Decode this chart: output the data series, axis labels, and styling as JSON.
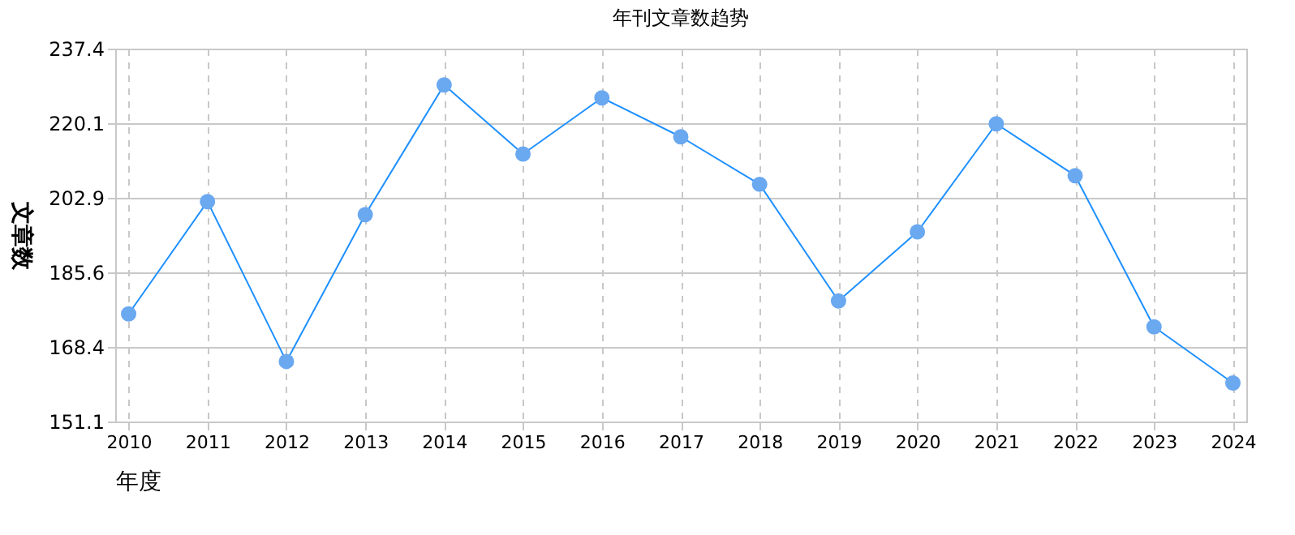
{
  "chart_data": {
    "type": "line",
    "title": "年刊文章数趋势",
    "xlabel": "年度",
    "ylabel": "文章数",
    "categories": [
      "2010",
      "2011",
      "2012",
      "2013",
      "2014",
      "2015",
      "2016",
      "2017",
      "2018",
      "2019",
      "2020",
      "2021",
      "2022",
      "2023",
      "2024"
    ],
    "series": [
      {
        "color": "#1e90ff",
        "values": [
          176,
          202,
          165,
          199,
          229,
          213,
          226,
          217,
          206,
          179,
          195,
          220,
          208,
          173,
          160
        ]
      }
    ],
    "ylim": [
      151.1,
      237.4
    ],
    "yticks": [
      151.1,
      168.4,
      185.6,
      202.9,
      220.1,
      237.4
    ],
    "grid": true,
    "marker": "circle",
    "line_style": "solid"
  }
}
